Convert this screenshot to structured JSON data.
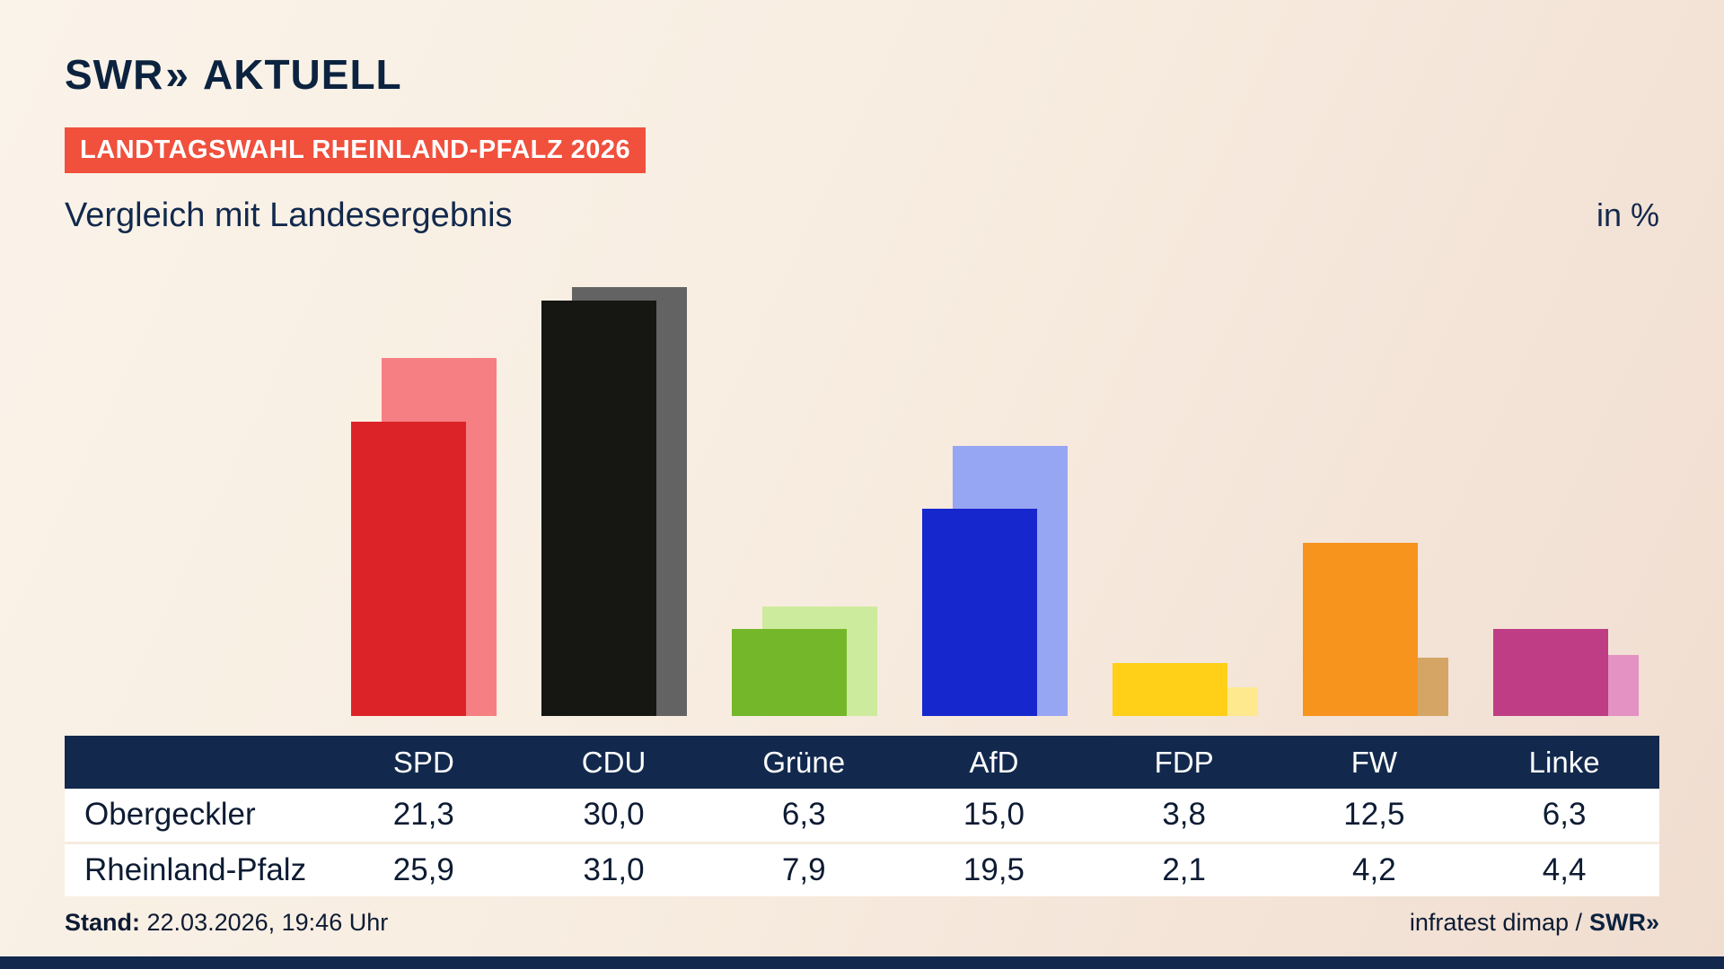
{
  "header": {
    "logo": {
      "brand": "SWR",
      "chevrons": "»",
      "product": "AKTUELL"
    },
    "badge": "LANDTAGSWAHL RHEINLAND-PFALZ 2026",
    "title": "Vergleich mit Landesergebnis",
    "unit": "in %"
  },
  "chart_data": {
    "type": "bar",
    "categories": [
      "SPD",
      "CDU",
      "Grüne",
      "AfD",
      "FDP",
      "FW",
      "Linke"
    ],
    "series": [
      {
        "name": "Obergeckler",
        "values": [
          21.3,
          30.0,
          6.3,
          15.0,
          3.8,
          12.5,
          6.3
        ]
      },
      {
        "name": "Rheinland-Pfalz",
        "values": [
          25.9,
          31.0,
          7.9,
          19.5,
          2.1,
          4.2,
          4.4
        ]
      }
    ],
    "ylim": [
      0,
      31
    ],
    "grid": false,
    "legend_position": "table-below",
    "party_colors": [
      {
        "front": "#dc2327",
        "back": "#f57f82"
      },
      {
        "front": "#161613",
        "back": "#636363"
      },
      {
        "front": "#74b72b",
        "back": "#cdeb9c"
      },
      {
        "front": "#1627cd",
        "back": "#97a6f2"
      },
      {
        "front": "#ffd017",
        "back": "#ffe98e"
      },
      {
        "front": "#f7941e",
        "back": "#d5a566"
      },
      {
        "front": "#bf3d85",
        "back": "#e492c4"
      }
    ]
  },
  "table": {
    "header": [
      "SPD",
      "CDU",
      "Grüne",
      "AfD",
      "FDP",
      "FW",
      "Linke"
    ],
    "rows": [
      {
        "label": "Obergeckler",
        "values": [
          "21,3",
          "30,0",
          "6,3",
          "15,0",
          "3,8",
          "12,5",
          "6,3"
        ]
      },
      {
        "label": "Rheinland-Pfalz",
        "values": [
          "25,9",
          "31,0",
          "7,9",
          "19,5",
          "2,1",
          "4,2",
          "4,4"
        ]
      }
    ]
  },
  "footer": {
    "stand_label": "Stand:",
    "stand_value": "22.03.2026, 19:46 Uhr",
    "source_text": "infratest dimap /",
    "source_brand": "SWR»"
  },
  "colors": {
    "navy": "#12294d",
    "badge_red": "#f0503c",
    "background_cream": "#f8ede1",
    "table_row_white": "#ffffff"
  }
}
